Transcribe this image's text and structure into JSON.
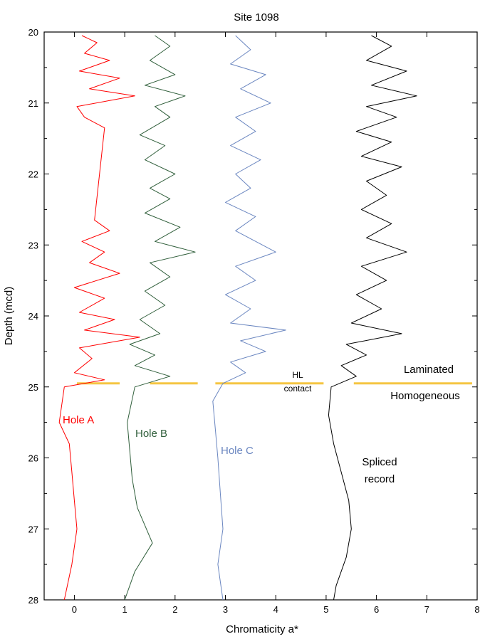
{
  "chart_data": {
    "type": "line",
    "title": "Site 1098",
    "xlabel": "Chromaticity a*",
    "ylabel": "Depth (mcd)",
    "xlim": [
      -0.6,
      8.0
    ],
    "ylim": [
      28,
      20
    ],
    "x_ticks": [
      0,
      1,
      2,
      3,
      4,
      5,
      6,
      7,
      8
    ],
    "y_ticks": [
      20,
      21,
      22,
      23,
      24,
      25,
      26,
      27,
      28
    ],
    "grid": false,
    "series": [
      {
        "name": "Hole A",
        "color": "#ff0000",
        "points": [
          [
            0.15,
            20.05
          ],
          [
            0.45,
            20.15
          ],
          [
            0.2,
            20.3
          ],
          [
            0.7,
            20.4
          ],
          [
            0.1,
            20.55
          ],
          [
            0.9,
            20.65
          ],
          [
            0.3,
            20.8
          ],
          [
            1.2,
            20.9
          ],
          [
            0.05,
            21.05
          ],
          [
            0.2,
            21.2
          ],
          [
            0.6,
            21.35
          ],
          [
            0.4,
            22.65
          ],
          [
            0.7,
            22.8
          ],
          [
            0.15,
            22.95
          ],
          [
            0.6,
            23.1
          ],
          [
            0.3,
            23.25
          ],
          [
            0.9,
            23.4
          ],
          [
            0.0,
            23.6
          ],
          [
            0.6,
            23.75
          ],
          [
            0.1,
            23.95
          ],
          [
            0.8,
            24.05
          ],
          [
            0.2,
            24.2
          ],
          [
            1.3,
            24.3
          ],
          [
            0.1,
            24.45
          ],
          [
            0.35,
            24.6
          ],
          [
            0.0,
            24.8
          ],
          [
            0.6,
            24.9
          ],
          [
            -0.2,
            25.0
          ],
          [
            -0.3,
            25.5
          ],
          [
            -0.1,
            25.8
          ],
          [
            -0.05,
            26.2
          ],
          [
            0.0,
            26.6
          ],
          [
            0.05,
            27.0
          ],
          [
            -0.05,
            27.5
          ],
          [
            -0.2,
            28.0
          ]
        ]
      },
      {
        "name": "Hole B",
        "color": "#2f5e3a",
        "points": [
          [
            1.6,
            20.05
          ],
          [
            1.9,
            20.2
          ],
          [
            1.5,
            20.4
          ],
          [
            2.0,
            20.6
          ],
          [
            1.4,
            20.75
          ],
          [
            2.2,
            20.9
          ],
          [
            1.6,
            21.05
          ],
          [
            1.9,
            21.2
          ],
          [
            1.3,
            21.45
          ],
          [
            1.8,
            21.6
          ],
          [
            1.4,
            21.8
          ],
          [
            2.0,
            22.0
          ],
          [
            1.5,
            22.2
          ],
          [
            1.9,
            22.35
          ],
          [
            1.4,
            22.55
          ],
          [
            2.1,
            22.75
          ],
          [
            1.6,
            22.95
          ],
          [
            2.4,
            23.1
          ],
          [
            1.5,
            23.25
          ],
          [
            1.9,
            23.45
          ],
          [
            1.4,
            23.65
          ],
          [
            1.8,
            23.85
          ],
          [
            1.3,
            24.05
          ],
          [
            1.7,
            24.25
          ],
          [
            1.1,
            24.4
          ],
          [
            1.6,
            24.55
          ],
          [
            1.2,
            24.7
          ],
          [
            1.9,
            24.85
          ],
          [
            1.2,
            25.0
          ],
          [
            1.05,
            25.5
          ],
          [
            1.1,
            25.9
          ],
          [
            1.15,
            26.3
          ],
          [
            1.25,
            26.7
          ],
          [
            1.55,
            27.2
          ],
          [
            1.2,
            27.6
          ],
          [
            1.0,
            28.0
          ]
        ]
      },
      {
        "name": "Hole C",
        "color": "#6a86c0",
        "points": [
          [
            3.2,
            20.05
          ],
          [
            3.5,
            20.25
          ],
          [
            3.1,
            20.45
          ],
          [
            3.8,
            20.6
          ],
          [
            3.3,
            20.8
          ],
          [
            3.9,
            21.0
          ],
          [
            3.2,
            21.2
          ],
          [
            3.6,
            21.4
          ],
          [
            3.1,
            21.6
          ],
          [
            3.7,
            21.8
          ],
          [
            3.2,
            22.0
          ],
          [
            3.5,
            22.2
          ],
          [
            3.0,
            22.4
          ],
          [
            3.6,
            22.6
          ],
          [
            3.2,
            22.8
          ],
          [
            4.0,
            23.1
          ],
          [
            3.2,
            23.3
          ],
          [
            3.6,
            23.5
          ],
          [
            3.0,
            23.7
          ],
          [
            3.5,
            23.9
          ],
          [
            3.1,
            24.1
          ],
          [
            4.2,
            24.2
          ],
          [
            3.3,
            24.35
          ],
          [
            3.8,
            24.5
          ],
          [
            3.1,
            24.65
          ],
          [
            3.4,
            24.8
          ],
          [
            2.95,
            24.95
          ],
          [
            2.75,
            25.2
          ],
          [
            2.8,
            25.6
          ],
          [
            2.85,
            26.0
          ],
          [
            2.9,
            26.5
          ],
          [
            2.95,
            27.0
          ],
          [
            2.85,
            27.5
          ],
          [
            2.95,
            28.0
          ]
        ]
      },
      {
        "name": "Spliced record",
        "color": "#000000",
        "points": [
          [
            5.9,
            20.05
          ],
          [
            6.3,
            20.2
          ],
          [
            5.8,
            20.4
          ],
          [
            6.6,
            20.55
          ],
          [
            5.9,
            20.75
          ],
          [
            6.8,
            20.9
          ],
          [
            5.8,
            21.05
          ],
          [
            6.4,
            21.2
          ],
          [
            5.6,
            21.4
          ],
          [
            6.3,
            21.55
          ],
          [
            5.7,
            21.75
          ],
          [
            6.5,
            21.9
          ],
          [
            5.8,
            22.1
          ],
          [
            6.2,
            22.3
          ],
          [
            5.7,
            22.5
          ],
          [
            6.3,
            22.7
          ],
          [
            5.8,
            22.9
          ],
          [
            6.6,
            23.1
          ],
          [
            5.7,
            23.3
          ],
          [
            6.2,
            23.5
          ],
          [
            5.6,
            23.7
          ],
          [
            6.1,
            23.9
          ],
          [
            5.5,
            24.1
          ],
          [
            6.5,
            24.25
          ],
          [
            5.4,
            24.4
          ],
          [
            5.8,
            24.55
          ],
          [
            5.3,
            24.7
          ],
          [
            5.6,
            24.85
          ],
          [
            5.1,
            25.0
          ],
          [
            5.05,
            25.4
          ],
          [
            5.15,
            25.8
          ],
          [
            5.3,
            26.2
          ],
          [
            5.45,
            26.6
          ],
          [
            5.5,
            27.0
          ],
          [
            5.4,
            27.4
          ],
          [
            5.2,
            27.8
          ],
          [
            5.15,
            28.0
          ]
        ]
      }
    ],
    "contact_segments": [
      {
        "x0": 0.05,
        "x1": 0.9,
        "y": 24.95
      },
      {
        "x0": 1.5,
        "x1": 2.45,
        "y": 24.95
      },
      {
        "x0": 2.8,
        "x1": 4.95,
        "y": 24.95
      },
      {
        "x0": 5.55,
        "x1": 7.9,
        "y": 24.95
      }
    ],
    "contact_color": "#f5c542",
    "annotations": {
      "hole_a": "Hole A",
      "hole_b": "Hole B",
      "hole_c": "Hole C",
      "spliced_1": "Spliced",
      "spliced_2": "record",
      "hl_1": "HL",
      "hl_2": "contact",
      "laminated": "Laminated",
      "homogeneous": "Homogeneous"
    }
  }
}
